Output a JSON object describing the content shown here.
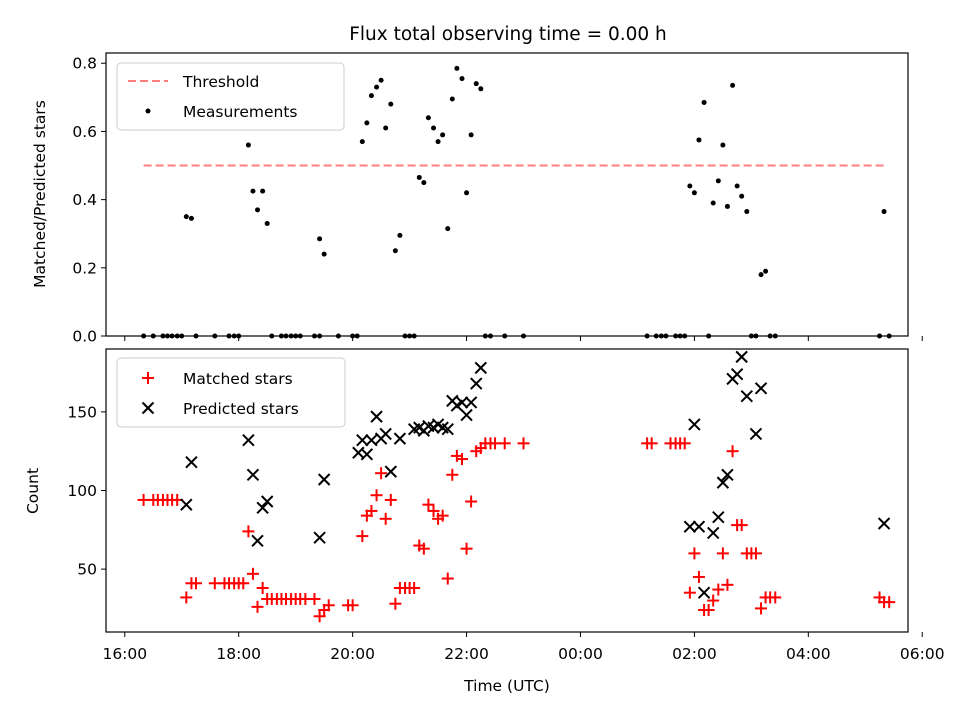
{
  "colors": {
    "threshold": "#ff7f7f",
    "measurement": "#000000",
    "matched": "#ff0000",
    "predicted": "#000000"
  },
  "chart_data": [
    {
      "type": "scatter",
      "title": "Flux total observing time = 0.00 h",
      "xlabel": "",
      "ylabel": "Matched/Predicted stars",
      "ylim": [
        0,
        0.83
      ],
      "yticks": [
        "0.0",
        "0.2",
        "0.4",
        "0.6",
        "0.8"
      ],
      "ytick_values": [
        0,
        0.2,
        0.4,
        0.6,
        0.8
      ],
      "x_unit": "hours after 16:00 UTC",
      "xlim": [
        -0.33,
        13.75
      ],
      "legend": {
        "position": "top-left",
        "entries": [
          "Threshold",
          "Measurements"
        ]
      },
      "threshold": {
        "name": "Threshold",
        "y": 0.5,
        "x": [
          0.33,
          13.33
        ]
      },
      "series": [
        {
          "name": "Measurements",
          "points": [
            [
              0.33,
              0
            ],
            [
              0.5,
              0
            ],
            [
              0.67,
              0
            ],
            [
              0.75,
              0
            ],
            [
              0.83,
              0
            ],
            [
              0.92,
              0
            ],
            [
              1.0,
              0
            ],
            [
              1.25,
              0
            ],
            [
              1.58,
              0
            ],
            [
              1.83,
              0
            ],
            [
              1.92,
              0
            ],
            [
              2.0,
              0
            ],
            [
              1.08,
              0.35
            ],
            [
              1.17,
              0.345
            ],
            [
              2.17,
              0.56
            ],
            [
              2.25,
              0.425
            ],
            [
              2.33,
              0.37
            ],
            [
              2.42,
              0.425
            ],
            [
              2.5,
              0.33
            ],
            [
              2.58,
              0
            ],
            [
              2.75,
              0
            ],
            [
              2.83,
              0
            ],
            [
              2.92,
              0
            ],
            [
              3.0,
              0
            ],
            [
              3.08,
              0
            ],
            [
              3.33,
              0
            ],
            [
              3.42,
              0
            ],
            [
              3.75,
              0
            ],
            [
              4.0,
              0
            ],
            [
              4.08,
              0
            ],
            [
              3.42,
              0.285
            ],
            [
              3.5,
              0.24
            ],
            [
              4.17,
              0.57
            ],
            [
              4.25,
              0.625
            ],
            [
              4.33,
              0.705
            ],
            [
              4.42,
              0.73
            ],
            [
              4.5,
              0.75
            ],
            [
              4.58,
              0.61
            ],
            [
              4.67,
              0.68
            ],
            [
              4.75,
              0.25
            ],
            [
              4.83,
              0.295
            ],
            [
              4.92,
              0
            ],
            [
              5.0,
              0
            ],
            [
              5.08,
              0
            ],
            [
              5.17,
              0.465
            ],
            [
              5.25,
              0.45
            ],
            [
              5.33,
              0.64
            ],
            [
              5.42,
              0.61
            ],
            [
              5.5,
              0.57
            ],
            [
              5.58,
              0.59
            ],
            [
              5.67,
              0.315
            ],
            [
              5.75,
              0.695
            ],
            [
              5.83,
              0.785
            ],
            [
              5.92,
              0.755
            ],
            [
              6.0,
              0.42
            ],
            [
              6.08,
              0.59
            ],
            [
              6.17,
              0.74
            ],
            [
              6.25,
              0.725
            ],
            [
              6.33,
              0
            ],
            [
              6.42,
              0
            ],
            [
              6.67,
              0
            ],
            [
              7.0,
              0
            ],
            [
              9.17,
              0
            ],
            [
              9.33,
              0
            ],
            [
              9.42,
              0
            ],
            [
              9.5,
              0
            ],
            [
              9.67,
              0
            ],
            [
              9.75,
              0
            ],
            [
              9.83,
              0
            ],
            [
              9.92,
              0.44
            ],
            [
              10.0,
              0.42
            ],
            [
              10.08,
              0.575
            ],
            [
              10.17,
              0.685
            ],
            [
              10.25,
              0
            ],
            [
              10.33,
              0.39
            ],
            [
              10.42,
              0.455
            ],
            [
              10.5,
              0.56
            ],
            [
              10.58,
              0.38
            ],
            [
              10.67,
              0.735
            ],
            [
              10.75,
              0.44
            ],
            [
              10.83,
              0.41
            ],
            [
              10.92,
              0.365
            ],
            [
              11.0,
              0
            ],
            [
              11.08,
              0
            ],
            [
              11.17,
              0.18
            ],
            [
              11.25,
              0.19
            ],
            [
              11.33,
              0
            ],
            [
              11.42,
              0
            ],
            [
              13.25,
              0
            ],
            [
              13.33,
              0.365
            ],
            [
              13.42,
              0
            ]
          ]
        }
      ]
    },
    {
      "type": "scatter",
      "title": "",
      "xlabel": "Time (UTC)",
      "ylabel": "Count",
      "ylim": [
        10,
        190
      ],
      "yticks": [
        "50",
        "100",
        "150"
      ],
      "ytick_values": [
        50,
        100,
        150
      ],
      "x_unit": "hours after 16:00 UTC",
      "xlim": [
        -0.33,
        13.75
      ],
      "xticks": [
        "16:00",
        "18:00",
        "20:00",
        "22:00",
        "00:00",
        "02:00",
        "04:00",
        "06:00"
      ],
      "xtick_values": [
        0,
        2,
        4,
        6,
        8,
        10,
        12,
        14
      ],
      "legend": {
        "position": "top-left",
        "entries": [
          "Matched stars",
          "Predicted stars"
        ]
      },
      "series": [
        {
          "name": "Matched stars",
          "marker": "plus",
          "points": [
            [
              0.33,
              94
            ],
            [
              0.5,
              94
            ],
            [
              0.58,
              94
            ],
            [
              0.67,
              94
            ],
            [
              0.75,
              94
            ],
            [
              0.83,
              94
            ],
            [
              0.92,
              94
            ],
            [
              1.08,
              32
            ],
            [
              1.17,
              41
            ],
            [
              1.25,
              41
            ],
            [
              1.58,
              41
            ],
            [
              1.75,
              41
            ],
            [
              1.83,
              41
            ],
            [
              1.92,
              41
            ],
            [
              2.0,
              41
            ],
            [
              2.08,
              41
            ],
            [
              2.17,
              74
            ],
            [
              2.25,
              47
            ],
            [
              2.33,
              26
            ],
            [
              2.42,
              38
            ],
            [
              2.5,
              31
            ],
            [
              2.58,
              31
            ],
            [
              2.67,
              31
            ],
            [
              2.75,
              31
            ],
            [
              2.83,
              31
            ],
            [
              2.92,
              31
            ],
            [
              3.0,
              31
            ],
            [
              3.08,
              31
            ],
            [
              3.17,
              31
            ],
            [
              3.33,
              31
            ],
            [
              3.42,
              20
            ],
            [
              3.5,
              24
            ],
            [
              3.58,
              27
            ],
            [
              3.92,
              27
            ],
            [
              4.0,
              27
            ],
            [
              4.17,
              71
            ],
            [
              4.25,
              84
            ],
            [
              4.33,
              87
            ],
            [
              4.42,
              97
            ],
            [
              4.5,
              111
            ],
            [
              4.58,
              82
            ],
            [
              4.67,
              94
            ],
            [
              4.75,
              28
            ],
            [
              4.83,
              38
            ],
            [
              4.92,
              38
            ],
            [
              5.0,
              38
            ],
            [
              5.08,
              38
            ],
            [
              5.17,
              65
            ],
            [
              5.25,
              63
            ],
            [
              5.33,
              91
            ],
            [
              5.42,
              87
            ],
            [
              5.5,
              82
            ],
            [
              5.58,
              84
            ],
            [
              5.67,
              44
            ],
            [
              5.75,
              110
            ],
            [
              5.83,
              122
            ],
            [
              5.92,
              120
            ],
            [
              6.0,
              63
            ],
            [
              6.08,
              93
            ],
            [
              6.17,
              125
            ],
            [
              6.25,
              127
            ],
            [
              6.33,
              130
            ],
            [
              6.42,
              130
            ],
            [
              6.5,
              130
            ],
            [
              6.67,
              130
            ],
            [
              7.0,
              130
            ],
            [
              9.17,
              130
            ],
            [
              9.25,
              130
            ],
            [
              9.58,
              130
            ],
            [
              9.67,
              130
            ],
            [
              9.75,
              130
            ],
            [
              9.83,
              130
            ],
            [
              9.92,
              35
            ],
            [
              10.0,
              60
            ],
            [
              10.08,
              45
            ],
            [
              10.17,
              24
            ],
            [
              10.25,
              24
            ],
            [
              10.33,
              30
            ],
            [
              10.42,
              37
            ],
            [
              10.5,
              60
            ],
            [
              10.58,
              40
            ],
            [
              10.67,
              125
            ],
            [
              10.75,
              78
            ],
            [
              10.83,
              78
            ],
            [
              10.92,
              60
            ],
            [
              11.0,
              60
            ],
            [
              11.08,
              60
            ],
            [
              11.17,
              25
            ],
            [
              11.25,
              32
            ],
            [
              11.33,
              32
            ],
            [
              11.42,
              32
            ],
            [
              13.25,
              32
            ],
            [
              13.33,
              29
            ],
            [
              13.42,
              29
            ]
          ]
        },
        {
          "name": "Predicted stars",
          "marker": "x",
          "points": [
            [
              1.08,
              91
            ],
            [
              1.17,
              118
            ],
            [
              2.17,
              132
            ],
            [
              2.25,
              110
            ],
            [
              2.33,
              68
            ],
            [
              2.42,
              89
            ],
            [
              2.5,
              93
            ],
            [
              3.42,
              70
            ],
            [
              3.5,
              107
            ],
            [
              4.1,
              124
            ],
            [
              4.17,
              132
            ],
            [
              4.25,
              123
            ],
            [
              4.33,
              132
            ],
            [
              4.42,
              147
            ],
            [
              4.5,
              133
            ],
            [
              4.58,
              136
            ],
            [
              4.67,
              112
            ],
            [
              4.83,
              133
            ],
            [
              5.08,
              139
            ],
            [
              5.17,
              140
            ],
            [
              5.25,
              138
            ],
            [
              5.33,
              141
            ],
            [
              5.42,
              140
            ],
            [
              5.5,
              142
            ],
            [
              5.58,
              140
            ],
            [
              5.67,
              139
            ],
            [
              5.75,
              157
            ],
            [
              5.83,
              154
            ],
            [
              5.92,
              156
            ],
            [
              6.0,
              148
            ],
            [
              6.08,
              156
            ],
            [
              6.17,
              168
            ],
            [
              6.25,
              178
            ],
            [
              9.92,
              77
            ],
            [
              10.0,
              142
            ],
            [
              10.08,
              77
            ],
            [
              10.17,
              35
            ],
            [
              10.33,
              73
            ],
            [
              10.42,
              83
            ],
            [
              10.5,
              105
            ],
            [
              10.58,
              110
            ],
            [
              10.67,
              171
            ],
            [
              10.75,
              174
            ],
            [
              10.83,
              185
            ],
            [
              10.92,
              160
            ],
            [
              11.08,
              136
            ],
            [
              11.17,
              165
            ],
            [
              13.33,
              79
            ]
          ]
        }
      ]
    }
  ]
}
